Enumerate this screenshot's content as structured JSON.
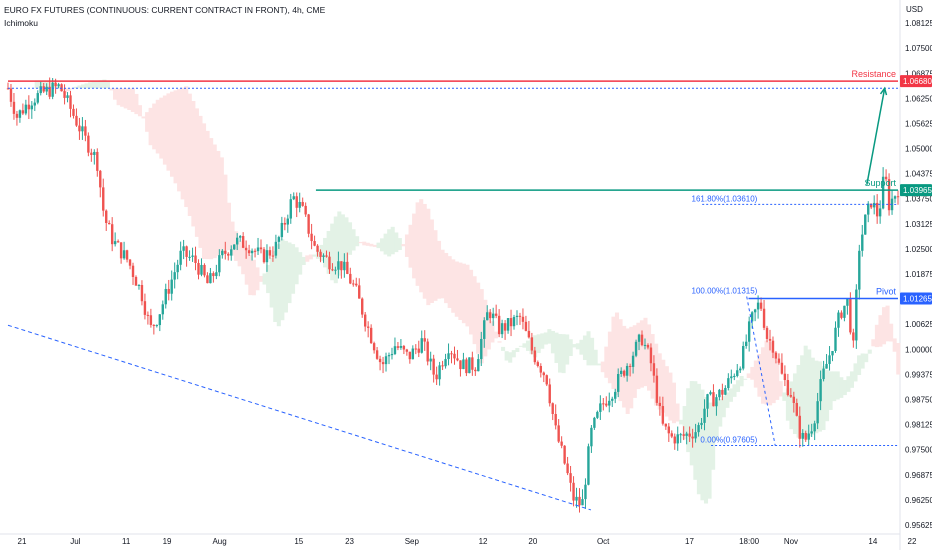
{
  "header": {
    "title": "EURO FX FUTURES (CONTINUOUS: CURRENT CONTRACT IN FRONT), 4h, CME",
    "indicator": "Ichimoku",
    "currency": "USD"
  },
  "colors": {
    "up": "#26a69a",
    "down": "#ef5350",
    "resistance": "#f23645",
    "support": "#089981",
    "pivot": "#2962ff",
    "cloud_bull": "#e3f2e6",
    "cloud_bear": "#fde4e4"
  },
  "chart_data": {
    "type": "candlestick",
    "yaxis": {
      "ylim": [
        0.955,
        1.085
      ],
      "ticks": [
        "1.08125",
        "1.07500",
        "1.06875",
        "1.06250",
        "1.05625",
        "1.05000",
        "1.04375",
        "1.03750",
        "1.03125",
        "1.02500",
        "1.01875",
        "1.01250",
        "1.00625",
        "1.00000",
        "0.99375",
        "0.98750",
        "0.98125",
        "0.97500",
        "0.96875",
        "0.96250",
        "0.95625"
      ]
    },
    "xaxis": {
      "labels": [
        "21",
        "Jul",
        "11",
        "19",
        "Aug",
        "15",
        "23",
        "Sep",
        "12",
        "20",
        "Oct",
        "17",
        "18:00",
        "Nov",
        "14",
        "22"
      ],
      "label_positions": [
        0.0,
        0.06,
        0.117,
        0.163,
        0.222,
        0.311,
        0.368,
        0.438,
        0.518,
        0.574,
        0.653,
        0.75,
        0.817,
        0.864,
        0.956,
        1.0
      ]
    },
    "price_path": [
      [
        0.0,
        1.065
      ],
      [
        0.01,
        1.058
      ],
      [
        0.025,
        1.062
      ],
      [
        0.04,
        1.064
      ],
      [
        0.058,
        1.0655
      ],
      [
        0.07,
        1.06
      ],
      [
        0.085,
        1.053
      ],
      [
        0.1,
        1.047
      ],
      [
        0.108,
        1.033
      ],
      [
        0.118,
        1.027
      ],
      [
        0.135,
        1.022
      ],
      [
        0.15,
        1.014
      ],
      [
        0.16,
        1.005
      ],
      [
        0.168,
        1.008
      ],
      [
        0.18,
        1.015
      ],
      [
        0.195,
        1.024
      ],
      [
        0.21,
        1.022
      ],
      [
        0.225,
        1.016
      ],
      [
        0.24,
        1.023
      ],
      [
        0.255,
        1.027
      ],
      [
        0.27,
        1.026
      ],
      [
        0.285,
        1.023
      ],
      [
        0.3,
        1.025
      ],
      [
        0.31,
        1.031
      ],
      [
        0.32,
        1.038
      ],
      [
        0.33,
        1.035
      ],
      [
        0.345,
        1.025
      ],
      [
        0.36,
        1.022
      ],
      [
        0.375,
        1.021
      ],
      [
        0.39,
        1.015
      ],
      [
        0.405,
        1.005
      ],
      [
        0.42,
        0.996
      ],
      [
        0.435,
        1.001
      ],
      [
        0.45,
        0.998
      ],
      [
        0.465,
        1.002
      ],
      [
        0.48,
        0.993
      ],
      [
        0.495,
        1.001
      ],
      [
        0.51,
        0.996
      ],
      [
        0.525,
        0.996
      ],
      [
        0.54,
        1.01
      ],
      [
        0.552,
        1.005
      ],
      [
        0.562,
        1.006
      ],
      [
        0.575,
        1.008
      ],
      [
        0.59,
        0.999
      ],
      [
        0.605,
        0.993
      ],
      [
        0.615,
        0.98
      ],
      [
        0.625,
        0.972
      ],
      [
        0.635,
        0.963
      ],
      [
        0.645,
        0.961
      ],
      [
        0.655,
        0.979
      ],
      [
        0.667,
        0.986
      ],
      [
        0.68,
        0.99
      ],
      [
        0.69,
        0.994
      ],
      [
        0.7,
        0.998
      ],
      [
        0.712,
        1.003
      ],
      [
        0.722,
        0.997
      ],
      [
        0.735,
        0.981
      ],
      [
        0.745,
        0.978
      ],
      [
        0.755,
        0.978
      ],
      [
        0.765,
        0.979
      ],
      [
        0.775,
        0.98
      ],
      [
        0.785,
        0.987
      ],
      [
        0.795,
        0.988
      ],
      [
        0.805,
        0.99
      ],
      [
        0.815,
        0.994
      ],
      [
        0.825,
        0.998
      ],
      [
        0.835,
        1.007
      ],
      [
        0.845,
        1.012
      ],
      [
        0.853,
        1.003
      ],
      [
        0.86,
        1.001
      ],
      [
        0.87,
        0.993
      ],
      [
        0.88,
        0.989
      ],
      [
        0.888,
        0.98
      ],
      [
        0.895,
        0.977
      ],
      [
        0.905,
        0.982
      ],
      [
        0.915,
        0.993
      ],
      [
        0.925,
        1.0
      ],
      [
        0.935,
        1.009
      ],
      [
        0.943,
        1.012
      ],
      [
        0.95,
        1.0
      ],
      [
        0.956,
        1.025
      ],
      [
        0.963,
        1.032
      ],
      [
        0.97,
        1.037
      ],
      [
        0.978,
        1.033
      ],
      [
        0.985,
        1.044
      ],
      [
        0.99,
        1.036
      ],
      [
        1.0,
        1.04
      ]
    ],
    "levels": [
      {
        "name": "Resistance",
        "value": 1.0668,
        "label": "Resistance",
        "tag": "1.06680",
        "color": "#f23645"
      },
      {
        "name": "Support",
        "value": 1.03965,
        "label": "Support",
        "tag": "1.03965",
        "color": "#089981"
      },
      {
        "name": "Pivot",
        "value": 1.01265,
        "label": "Pivot",
        "tag": "1.01265",
        "color": "#2962ff"
      }
    ],
    "fib_labels": [
      {
        "text": "161.80%(1.03610)",
        "value": 1.0361
      },
      {
        "text": "100.00%(1.01315)",
        "value": 1.01315
      },
      {
        "text": "0.00%(0.97605)",
        "value": 0.97605
      }
    ],
    "dotted_levels": [
      1.065,
      1.0361,
      0.97605
    ],
    "trendline": {
      "from": {
        "x": 0.0,
        "y": 1.006
      },
      "to": {
        "x": 0.655,
        "y": 0.96
      }
    },
    "projection_arrow": {
      "from": {
        "x": 0.965,
        "y": 1.041
      },
      "to": {
        "x": 0.985,
        "y": 1.065
      }
    }
  }
}
